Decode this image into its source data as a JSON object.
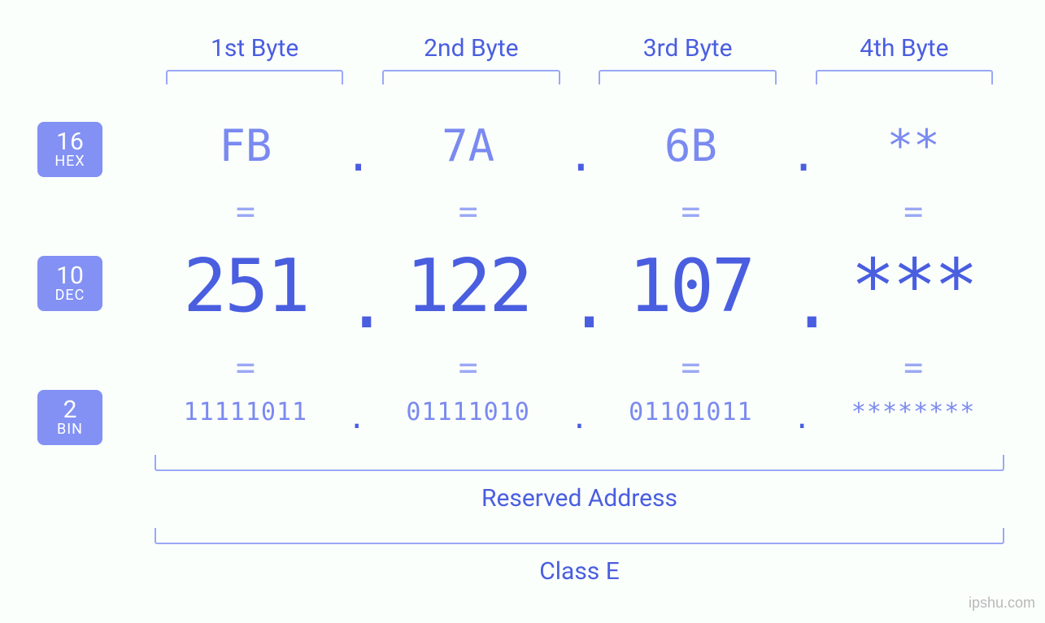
{
  "colors": {
    "background": "#fbfffc",
    "badge_bg": "#8291f3",
    "badge_text": "#ffffff",
    "header_text": "#4a5ee0",
    "value_text": "#7a8af0",
    "dec_text": "#4a5ee0",
    "bracket": "#9aa8f5",
    "eq": "#9aa8f5",
    "watermark": "#b8b8b8"
  },
  "typography": {
    "header_fontsize": 30,
    "hex_fontsize": 54,
    "dec_fontsize": 90,
    "bin_fontsize": 30,
    "eq_fontsize": 40,
    "label_fontsize": 30,
    "badge_num_fontsize": 30,
    "badge_name_fontsize": 18,
    "mono_family": "Consolas, Menlo, monospace",
    "sans_family": "Segoe UI, Roboto, sans-serif"
  },
  "byte_headers": [
    "1st Byte",
    "2nd Byte",
    "3rd Byte",
    "4th Byte"
  ],
  "bases": {
    "hex": {
      "num": "16",
      "name": "HEX"
    },
    "dec": {
      "num": "10",
      "name": "DEC"
    },
    "bin": {
      "num": "2",
      "name": "BIN"
    }
  },
  "separator": ".",
  "equals": "=",
  "hex": [
    "FB",
    "7A",
    "6B",
    "**"
  ],
  "dec": [
    "251",
    "122",
    "107",
    "***"
  ],
  "bin": [
    "11111011",
    "01111010",
    "01101011",
    "********"
  ],
  "labels": {
    "reserved": "Reserved Address",
    "class": "Class E"
  },
  "watermark": "ipshu.com"
}
